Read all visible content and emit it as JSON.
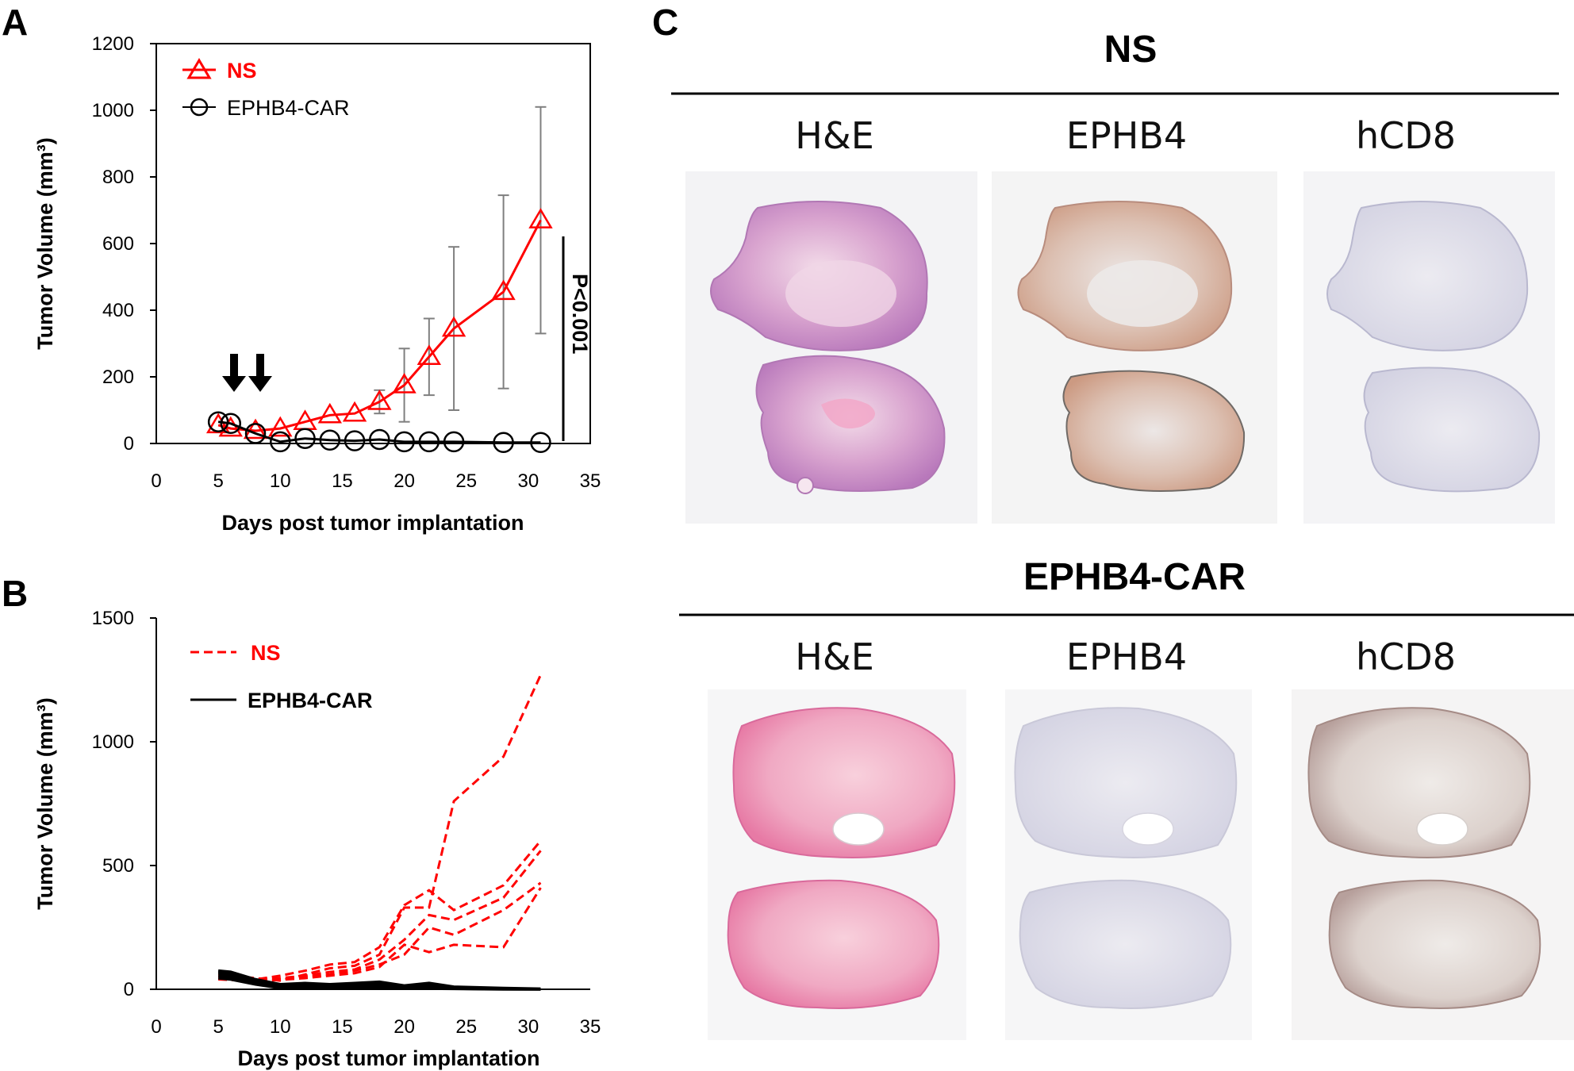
{
  "panels": {
    "a": "A",
    "b": "B",
    "c": "C"
  },
  "colors": {
    "ns": "#ff0000",
    "car": "#000000",
    "errorbar": "#7f7f7f"
  },
  "icons": [
    "down-arrow-icon",
    "triangle-marker-icon",
    "circle-marker-icon"
  ],
  "chart_data": [
    {
      "panel": "A",
      "type": "line",
      "xlabel": "Days post tumor implantation",
      "ylabel": "Tumor Volume (mm³)",
      "xlim": [
        0,
        35
      ],
      "ylim": [
        0,
        1200
      ],
      "xticks": [
        "0",
        "5",
        "10",
        "15",
        "20",
        "25",
        "30",
        "35"
      ],
      "yticks": [
        "0",
        "200",
        "400",
        "600",
        "800",
        "1000",
        "1200"
      ],
      "legend_position": "top-left",
      "annotation": "P<0.001",
      "dose_arrow_days": [
        6,
        8
      ],
      "series": [
        {
          "name": "NS",
          "marker": "triangle",
          "color": "#ff0000",
          "x": [
            5,
            6,
            8,
            10,
            12,
            14,
            16,
            18,
            20,
            22,
            24,
            28,
            31
          ],
          "y": [
            55,
            45,
            38,
            45,
            65,
            85,
            90,
            125,
            175,
            260,
            345,
            455,
            670
          ],
          "error": [
            0,
            0,
            0,
            0,
            0,
            0,
            0,
            35,
            110,
            115,
            245,
            290,
            340
          ]
        },
        {
          "name": "EPHB4-CAR",
          "marker": "circle",
          "color": "#000000",
          "x": [
            5,
            6,
            8,
            10,
            12,
            14,
            16,
            18,
            20,
            22,
            24,
            28,
            31
          ],
          "y": [
            65,
            60,
            30,
            5,
            15,
            10,
            8,
            12,
            5,
            5,
            5,
            3,
            3
          ]
        }
      ]
    },
    {
      "panel": "B",
      "type": "line",
      "xlabel": "Days post tumor implantation",
      "ylabel": "Tumor Volume (mm³)",
      "xlim": [
        0,
        35
      ],
      "ylim": [
        0,
        1500
      ],
      "xticks": [
        "0",
        "5",
        "10",
        "15",
        "20",
        "25",
        "30",
        "35"
      ],
      "yticks": [
        "0",
        "500",
        "1000",
        "1500"
      ],
      "legend_position": "top-left",
      "legend": [
        {
          "name": "NS",
          "color": "#ff0000",
          "dash": true
        },
        {
          "name": "EPHB4-CAR",
          "color": "#000000",
          "dash": false
        }
      ],
      "x": [
        5,
        6,
        8,
        10,
        12,
        14,
        16,
        18,
        20,
        22,
        24,
        28,
        31
      ],
      "ns_curves": [
        [
          60,
          55,
          45,
          35,
          60,
          85,
          95,
          140,
          330,
          330,
          760,
          940,
          1270
        ],
        [
          55,
          50,
          40,
          55,
          75,
          100,
          110,
          170,
          340,
          400,
          320,
          420,
          600
        ],
        [
          50,
          45,
          38,
          45,
          55,
          70,
          80,
          120,
          200,
          300,
          280,
          370,
          560
        ],
        [
          45,
          40,
          35,
          40,
          50,
          60,
          75,
          100,
          140,
          250,
          220,
          320,
          430
        ],
        [
          40,
          38,
          32,
          38,
          45,
          55,
          65,
          90,
          180,
          150,
          180,
          170,
          410
        ]
      ],
      "car_curves": [
        [
          75,
          70,
          40,
          20,
          25,
          20,
          25,
          30,
          15,
          25,
          10,
          5,
          2
        ],
        [
          70,
          65,
          35,
          15,
          20,
          15,
          18,
          22,
          10,
          18,
          8,
          3,
          1
        ],
        [
          65,
          60,
          30,
          10,
          15,
          12,
          10,
          15,
          8,
          10,
          5,
          2,
          1
        ],
        [
          55,
          50,
          25,
          8,
          10,
          8,
          8,
          10,
          5,
          6,
          3,
          1,
          0
        ],
        [
          45,
          40,
          20,
          5,
          8,
          5,
          5,
          6,
          3,
          3,
          2,
          0,
          0
        ]
      ]
    }
  ],
  "histology": {
    "groups": [
      {
        "title": "NS",
        "columns": [
          "H&E",
          "EPHB4",
          "hCD8"
        ]
      },
      {
        "title": "EPHB4-CAR",
        "columns": [
          "H&E",
          "EPHB4",
          "hCD8"
        ]
      }
    ]
  }
}
